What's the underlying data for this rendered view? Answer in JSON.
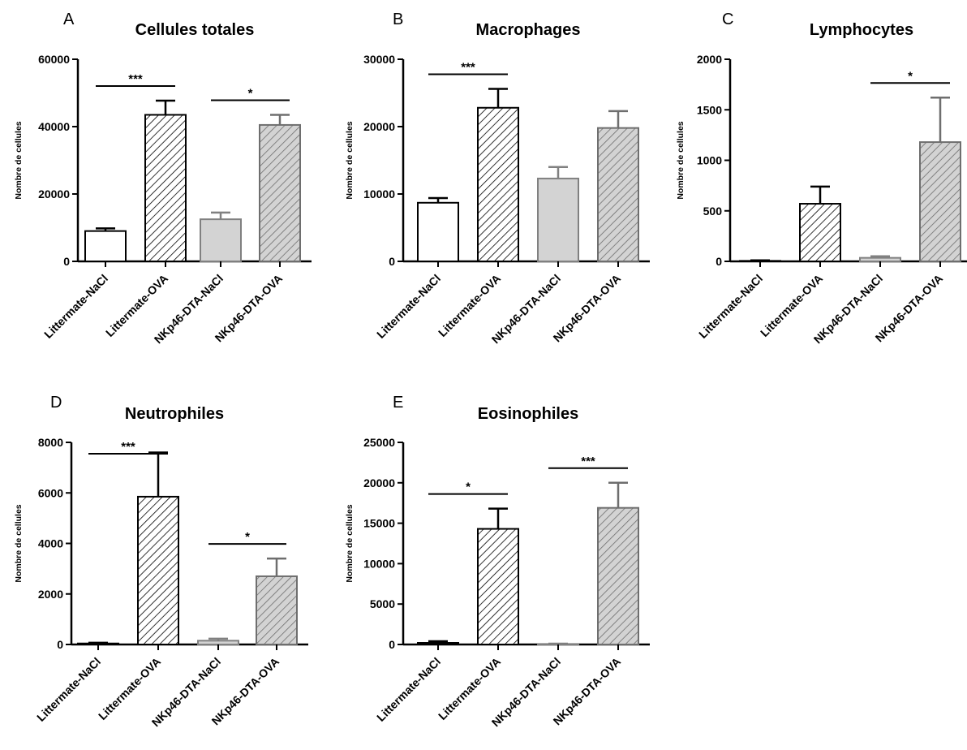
{
  "chart_data": [
    {
      "type": "bar",
      "panel": "A",
      "title": "Cellules totales",
      "ylabel": "Nombre de cellules",
      "ylim": [
        0,
        60000
      ],
      "yticks": [
        "0",
        "20000",
        "40000",
        "60000"
      ],
      "categories": [
        "Littermate-NaCl",
        "Littermate-OVA",
        "NKp46-DTA-NaCl",
        "NKp46-DTA-OVA"
      ],
      "values": [
        9000,
        43500,
        12500,
        40500
      ],
      "errors": [
        800,
        4200,
        2000,
        3000
      ],
      "significance": [
        {
          "from": 0,
          "to": 1,
          "label": "***"
        },
        {
          "from": 2,
          "to": 3,
          "label": "*"
        }
      ]
    },
    {
      "type": "bar",
      "panel": "B",
      "title": "Macrophages",
      "ylabel": "Nombre de cellules",
      "ylim": [
        0,
        30000
      ],
      "yticks": [
        "0",
        "10000",
        "20000",
        "30000"
      ],
      "categories": [
        "Littermate-NaCl",
        "Littermate-OVA",
        "NKp46-DTA-NaCl",
        "NKp46-DTA-OVA"
      ],
      "values": [
        8700,
        22800,
        12300,
        19800
      ],
      "errors": [
        700,
        2800,
        1700,
        2500
      ],
      "significance": [
        {
          "from": 0,
          "to": 1,
          "label": "***"
        }
      ]
    },
    {
      "type": "bar",
      "panel": "C",
      "title": "Lymphocytes",
      "ylabel": "Nombre de cellules",
      "ylim": [
        0,
        2000
      ],
      "yticks": [
        "0",
        "500",
        "1000",
        "1500",
        "2000"
      ],
      "categories": [
        "Littermate-NaCl",
        "Littermate-OVA",
        "NKp46-DTA-NaCl",
        "NKp46-DTA-OVA"
      ],
      "values": [
        5,
        570,
        35,
        1180
      ],
      "errors": [
        5,
        170,
        15,
        440
      ],
      "significance": [
        {
          "from": 2,
          "to": 3,
          "label": "*"
        }
      ]
    },
    {
      "type": "bar",
      "panel": "D",
      "title": "Neutrophiles",
      "ylabel": "Nombre de cellules",
      "ylim": [
        0,
        8000
      ],
      "yticks": [
        "0",
        "2000",
        "4000",
        "6000",
        "8000"
      ],
      "categories": [
        "Littermate-NaCl",
        "Littermate-OVA",
        "NKp46-DTA-NaCl",
        "NKp46-DTA-OVA"
      ],
      "values": [
        40,
        5850,
        150,
        2700
      ],
      "errors": [
        30,
        1750,
        80,
        700
      ],
      "significance": [
        {
          "from": 0,
          "to": 1,
          "label": "***"
        },
        {
          "from": 2,
          "to": 3,
          "label": "*"
        }
      ]
    },
    {
      "type": "bar",
      "panel": "E",
      "title": "Eosinophiles",
      "ylabel": "Nombre de cellules",
      "ylim": [
        0,
        25000
      ],
      "yticks": [
        "0",
        "5000",
        "10000",
        "15000",
        "20000",
        "25000"
      ],
      "categories": [
        "Littermate-NaCl",
        "Littermate-OVA",
        "NKp46-DTA-NaCl",
        "NKp46-DTA-OVA"
      ],
      "values": [
        200,
        14300,
        60,
        16900
      ],
      "errors": [
        200,
        2500,
        40,
        3100
      ],
      "significance": [
        {
          "from": 0,
          "to": 1,
          "label": "*"
        },
        {
          "from": 2,
          "to": 3,
          "label": "***"
        }
      ]
    }
  ],
  "colors": {
    "axis": "#000000",
    "littermate_nacl_fill": "#ffffff",
    "littermate_nacl_stroke": "#000000",
    "littermate_ova_hatch": "#000000",
    "nkp46_nacl_fill": "#d3d3d3",
    "nkp46_nacl_stroke": "#808080",
    "nkp46_ova_hatch": "#6e6e6e",
    "nkp46_ova_fill": "#d3d3d3"
  }
}
